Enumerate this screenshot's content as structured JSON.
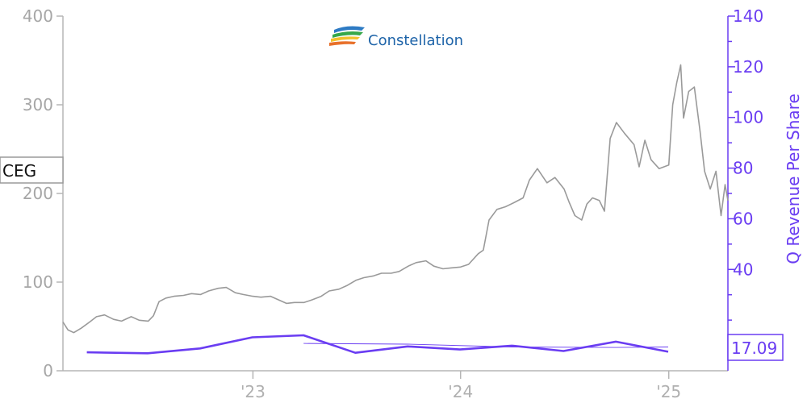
{
  "logo": {
    "text": "Constellation"
  },
  "ticker": "CEG",
  "last_value_label": "17.09",
  "colors": {
    "price": "#9a9a9a",
    "revenue": "#6a3df2",
    "left_axis": "#a6a6a6",
    "logo_blue": "#1d63a8"
  },
  "chart_data": {
    "type": "line",
    "title": "",
    "y_left": {
      "label": "",
      "range": [
        0,
        400
      ],
      "ticks": [
        "0",
        "100",
        "200",
        "300",
        "400"
      ]
    },
    "y_right": {
      "label": "Q Revenue Per Share",
      "range": [
        0,
        140
      ],
      "ticks": [
        "40",
        "60",
        "80",
        "100",
        "120",
        "140"
      ]
    },
    "x_ticks": [
      {
        "date": "2023-01-01",
        "label": "'23"
      },
      {
        "date": "2024-01-01",
        "label": "'24"
      },
      {
        "date": "2025-01-01",
        "label": "'25"
      }
    ],
    "x_range": [
      "2022-02-01",
      "2025-04-15"
    ],
    "series": [
      {
        "name": "CEG",
        "axis": "left",
        "points": [
          [
            "2022-02-01",
            55
          ],
          [
            "2022-02-10",
            46
          ],
          [
            "2022-02-20",
            43
          ],
          [
            "2022-03-05",
            48
          ],
          [
            "2022-03-20",
            55
          ],
          [
            "2022-04-01",
            61
          ],
          [
            "2022-04-15",
            63
          ],
          [
            "2022-05-01",
            58
          ],
          [
            "2022-05-15",
            56
          ],
          [
            "2022-06-01",
            61
          ],
          [
            "2022-06-15",
            57
          ],
          [
            "2022-07-01",
            56
          ],
          [
            "2022-07-10",
            62
          ],
          [
            "2022-07-20",
            78
          ],
          [
            "2022-08-01",
            82
          ],
          [
            "2022-08-15",
            84
          ],
          [
            "2022-09-01",
            85
          ],
          [
            "2022-09-15",
            87
          ],
          [
            "2022-10-01",
            86
          ],
          [
            "2022-10-15",
            90
          ],
          [
            "2022-11-01",
            93
          ],
          [
            "2022-11-15",
            94
          ],
          [
            "2022-12-01",
            88
          ],
          [
            "2022-12-15",
            86
          ],
          [
            "2023-01-01",
            84
          ],
          [
            "2023-01-15",
            83
          ],
          [
            "2023-02-01",
            84
          ],
          [
            "2023-02-15",
            80
          ],
          [
            "2023-03-01",
            76
          ],
          [
            "2023-03-15",
            77
          ],
          [
            "2023-04-01",
            77
          ],
          [
            "2023-04-15",
            80
          ],
          [
            "2023-05-01",
            84
          ],
          [
            "2023-05-15",
            90
          ],
          [
            "2023-06-01",
            92
          ],
          [
            "2023-06-15",
            96
          ],
          [
            "2023-07-01",
            102
          ],
          [
            "2023-07-15",
            105
          ],
          [
            "2023-08-01",
            107
          ],
          [
            "2023-08-15",
            110
          ],
          [
            "2023-09-01",
            110
          ],
          [
            "2023-09-15",
            112
          ],
          [
            "2023-10-01",
            118
          ],
          [
            "2023-10-15",
            122
          ],
          [
            "2023-11-01",
            124
          ],
          [
            "2023-11-15",
            118
          ],
          [
            "2023-12-01",
            115
          ],
          [
            "2023-12-15",
            116
          ],
          [
            "2024-01-01",
            117
          ],
          [
            "2024-01-15",
            120
          ],
          [
            "2024-02-01",
            132
          ],
          [
            "2024-02-10",
            136
          ],
          [
            "2024-02-20",
            170
          ],
          [
            "2024-03-05",
            182
          ],
          [
            "2024-03-20",
            185
          ],
          [
            "2024-04-05",
            190
          ],
          [
            "2024-04-20",
            195
          ],
          [
            "2024-05-01",
            215
          ],
          [
            "2024-05-15",
            228
          ],
          [
            "2024-06-01",
            212
          ],
          [
            "2024-06-15",
            218
          ],
          [
            "2024-07-01",
            205
          ],
          [
            "2024-07-10",
            190
          ],
          [
            "2024-07-20",
            175
          ],
          [
            "2024-08-01",
            170
          ],
          [
            "2024-08-10",
            188
          ],
          [
            "2024-08-20",
            195
          ],
          [
            "2024-09-01",
            192
          ],
          [
            "2024-09-10",
            180
          ],
          [
            "2024-09-20",
            262
          ],
          [
            "2024-10-01",
            280
          ],
          [
            "2024-10-15",
            268
          ],
          [
            "2024-11-01",
            255
          ],
          [
            "2024-11-10",
            230
          ],
          [
            "2024-11-20",
            260
          ],
          [
            "2024-12-01",
            238
          ],
          [
            "2024-12-15",
            228
          ],
          [
            "2025-01-01",
            232
          ],
          [
            "2025-01-08",
            300
          ],
          [
            "2025-01-15",
            325
          ],
          [
            "2025-01-22",
            345
          ],
          [
            "2025-01-27",
            285
          ],
          [
            "2025-02-05",
            315
          ],
          [
            "2025-02-15",
            320
          ],
          [
            "2025-02-25",
            270
          ],
          [
            "2025-03-05",
            225
          ],
          [
            "2025-03-15",
            205
          ],
          [
            "2025-03-25",
            225
          ],
          [
            "2025-04-03",
            175
          ],
          [
            "2025-04-10",
            210
          ],
          [
            "2025-04-15",
            192
          ]
        ]
      },
      {
        "name": "Q Revenue Per Share",
        "axis": "right",
        "points": [
          [
            "2022-03-15",
            7.3
          ],
          [
            "2022-06-30",
            6.9
          ],
          [
            "2022-09-30",
            8.8
          ],
          [
            "2022-12-31",
            13.2
          ],
          [
            "2023-03-31",
            14.0
          ],
          [
            "2023-06-30",
            7.1
          ],
          [
            "2023-09-30",
            9.6
          ],
          [
            "2023-12-31",
            8.4
          ],
          [
            "2024-03-31",
            9.9
          ],
          [
            "2024-06-30",
            7.8
          ],
          [
            "2024-09-30",
            11.5
          ],
          [
            "2024-12-31",
            7.5
          ]
        ]
      },
      {
        "name": "",
        "axis": "right",
        "points": [
          [
            "2023-03-31",
            10.8
          ],
          [
            "2023-09-30",
            10.5
          ],
          [
            "2024-03-31",
            9.4
          ],
          [
            "2024-09-30",
            9.2
          ],
          [
            "2024-12-31",
            9.4
          ]
        ]
      }
    ]
  }
}
